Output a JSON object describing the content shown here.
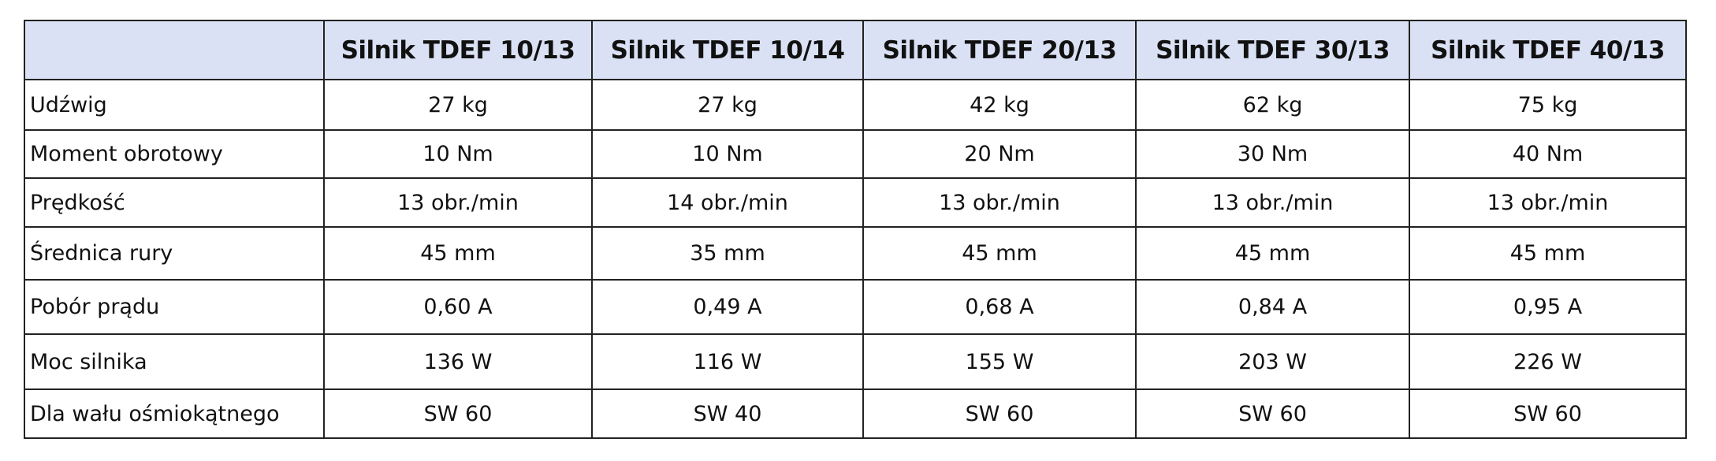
{
  "table": {
    "columns": [
      "Silnik TDEF 10/13",
      "Silnik TDEF 10/14",
      "Silnik TDEF 20/13",
      "Silnik TDEF 30/13",
      "Silnik TDEF 40/13"
    ],
    "rows": [
      {
        "label": "Udźwig",
        "cells": [
          "27 kg",
          "27 kg",
          "42 kg",
          "62 kg",
          "75 kg"
        ]
      },
      {
        "label": "Moment obrotowy",
        "cells": [
          "10 Nm",
          "10 Nm",
          "20 Nm",
          "30 Nm",
          "40 Nm"
        ]
      },
      {
        "label": "Prędkość",
        "cells": [
          "13 obr./min",
          "14 obr./min",
          "13 obr./min",
          "13 obr./min",
          "13 obr./min"
        ]
      },
      {
        "label": "Średnica rury",
        "cells": [
          "45 mm",
          "35 mm",
          "45 mm",
          "45 mm",
          "45 mm"
        ]
      },
      {
        "label": "Pobór prądu",
        "cells": [
          "0,60 A",
          "0,49 A",
          "0,68 A",
          "0,84 A",
          "0,95 A"
        ]
      },
      {
        "label": "Moc silnika",
        "cells": [
          "136 W",
          "116 W",
          "155 W",
          "203 W",
          "226 W"
        ]
      },
      {
        "label": "Dla wału ośmiokątnego",
        "cells": [
          "SW 60",
          "SW 40",
          "SW 60",
          "SW 60",
          "SW 60"
        ]
      }
    ]
  }
}
